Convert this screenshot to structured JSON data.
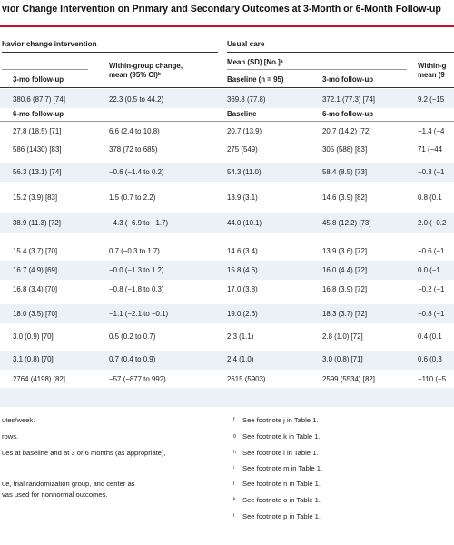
{
  "title": "vior Change Intervention on Primary and Secondary Outcomes at 3-Month or 6-Month Follow-up",
  "groups": {
    "intervention": "havior change intervention",
    "usual": "Usual care"
  },
  "headers": {
    "int_followup": "3-mo follow-up",
    "int_change": [
      "Within-group change,",
      "mean (95% CI)ᵇ"
    ],
    "usual_mean": "Mean (SD) [No.]ᵃ",
    "usual_baseline": "Baseline (n = 95)",
    "usual_followup": "3-mo follow-up",
    "usual_change": [
      "Within-g",
      "mean (9"
    ]
  },
  "subheaders": {
    "int_followup": "6-mo follow-up",
    "usual_baseline": "Baseline",
    "usual_followup": "6-mo follow-up"
  },
  "rows": [
    {
      "a": "380.6 (87.7) [74]",
      "b": "22.3 (0.5 to 44.2)",
      "c": "369.8 (77.8)",
      "d": "372.1 (77.3) [74]",
      "e": "9.2 (−15"
    },
    {
      "a": "27.8 (18.5) [71]",
      "b": "6.6 (2.4 to 10.8)",
      "c": "20.7 (13.9)",
      "d": "20.7 (14.2) [72]",
      "e": "−1.4 (−4"
    },
    {
      "a": "586 (1430) [83]",
      "b": "378 (72 to 685)",
      "c": "275 (549)",
      "d": "305 (588) [83]",
      "e": "71 (−44"
    },
    {
      "a": "56.3 (13.1) [74]",
      "b": "−0.6 (−1.4 to 0.2)",
      "c": "54.3 (11.0)",
      "d": "58.4 (8.5) [73]",
      "e": "−0.3 (−1"
    },
    {
      "a": "15.2 (3.9) [83]",
      "b": "1.5 (0.7 to 2.2)",
      "c": "13.9 (3.1)",
      "d": "14.6 (3.9) [82]",
      "e": "0.8 (0.1"
    },
    {
      "a": "38.9 (11.3) [72]",
      "b": "−4.3 (−6.9 to −1.7)",
      "c": "44.0 (10.1)",
      "d": "45.8 (12.2) [73]",
      "e": "2.0 (−0.2"
    },
    {
      "a": "15.4 (3.7) [70]",
      "b": "0.7 (−0.3 to 1.7)",
      "c": "14.6 (3.4)",
      "d": "13.9 (3.6) [72]",
      "e": "−0.6 (−1"
    },
    {
      "a": "16.7 (4.9) [69]",
      "b": "−0.0 (−1.3 to 1.2)",
      "c": "15.8 (4.6)",
      "d": "16.0 (4.4) [72]",
      "e": "0.0 (−1"
    },
    {
      "a": "16.8 (3.4) [70]",
      "b": "−0.8 (−1.8 to 0.3)",
      "c": "17.0 (3.8)",
      "d": "16.8 (3.9) [72]",
      "e": "−0.2 (−1"
    },
    {
      "a": "18.0 (3.5) [70]",
      "b": "−1.1 (−2.1 to −0.1)",
      "c": "19.0 (2.6)",
      "d": "18.3 (3.7) [72]",
      "e": "−0.8 (−1"
    },
    {
      "a": "3.0 (0.9) [70]",
      "b": "0.5 (0.2 to 0.7)",
      "c": "2.3 (1.1)",
      "d": "2.8 (1.0) [72]",
      "e": "0.4 (0.1"
    },
    {
      "a": "3.1 (0.8) [70]",
      "b": "0.7 (0.4 to 0.9)",
      "c": "2.4 (1.0)",
      "d": "3.0 (0.8) [71]",
      "e": "0.6 (0.3"
    },
    {
      "a": "2764 (4198) [82]",
      "b": "−57 (−877 to 992)",
      "c": "2615 (5903)",
      "d": "2599 (5534) [82]",
      "e": "−110 (−5"
    }
  ],
  "footnotes_left": [
    "utes/week.",
    "rows.",
    "ues at baseline and at 3 or 6 months (as appropriate),",
    "ue, trial randomization group, and center as",
    "vas used for nonnormal outcomes."
  ],
  "footnotes_right": [
    {
      "sym": "ᶠ",
      "text": "See footnote j in Table 1."
    },
    {
      "sym": "ᵍ",
      "text": "See footnote k in Table 1."
    },
    {
      "sym": "ʰ",
      "text": "See footnote l in Table 1."
    },
    {
      "sym": "ⁱ",
      "text": "See footnote m in Table 1."
    },
    {
      "sym": "ʲ",
      "text": "See footnote n in Table 1."
    },
    {
      "sym": "ᵏ",
      "text": "See footnote o in Table 1."
    },
    {
      "sym": "ˡ",
      "text": "See footnote p in Table 1."
    }
  ]
}
